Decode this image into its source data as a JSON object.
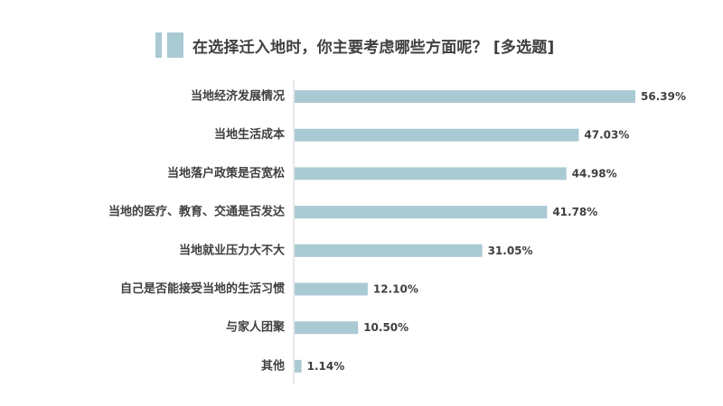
{
  "chart_data": {
    "type": "bar",
    "orientation": "horizontal",
    "title": "在选择迁入地时，你主要考虑哪些方面呢？  [多选题]",
    "categories": [
      "当地经济发展情况",
      "当地生活成本",
      "当地落户政策是否宽松",
      "当地的医疗、教育、交通是否发达",
      "当地就业压力大不大",
      "自己是否能接受当地的生活习惯",
      "与家人团聚",
      "其他"
    ],
    "values": [
      56.39,
      47.03,
      44.98,
      41.78,
      31.05,
      12.1,
      10.5,
      1.14
    ],
    "value_labels": [
      "56.39%",
      "47.03%",
      "44.98%",
      "41.78%",
      "31.05%",
      "12.10%",
      "10.50%",
      "1.14%"
    ],
    "xlim": [
      0,
      60
    ],
    "grid": false,
    "legend": "none",
    "bar_color": "#a9cad2",
    "axis_color": "#d0d0d0",
    "text_color": "#404040"
  }
}
